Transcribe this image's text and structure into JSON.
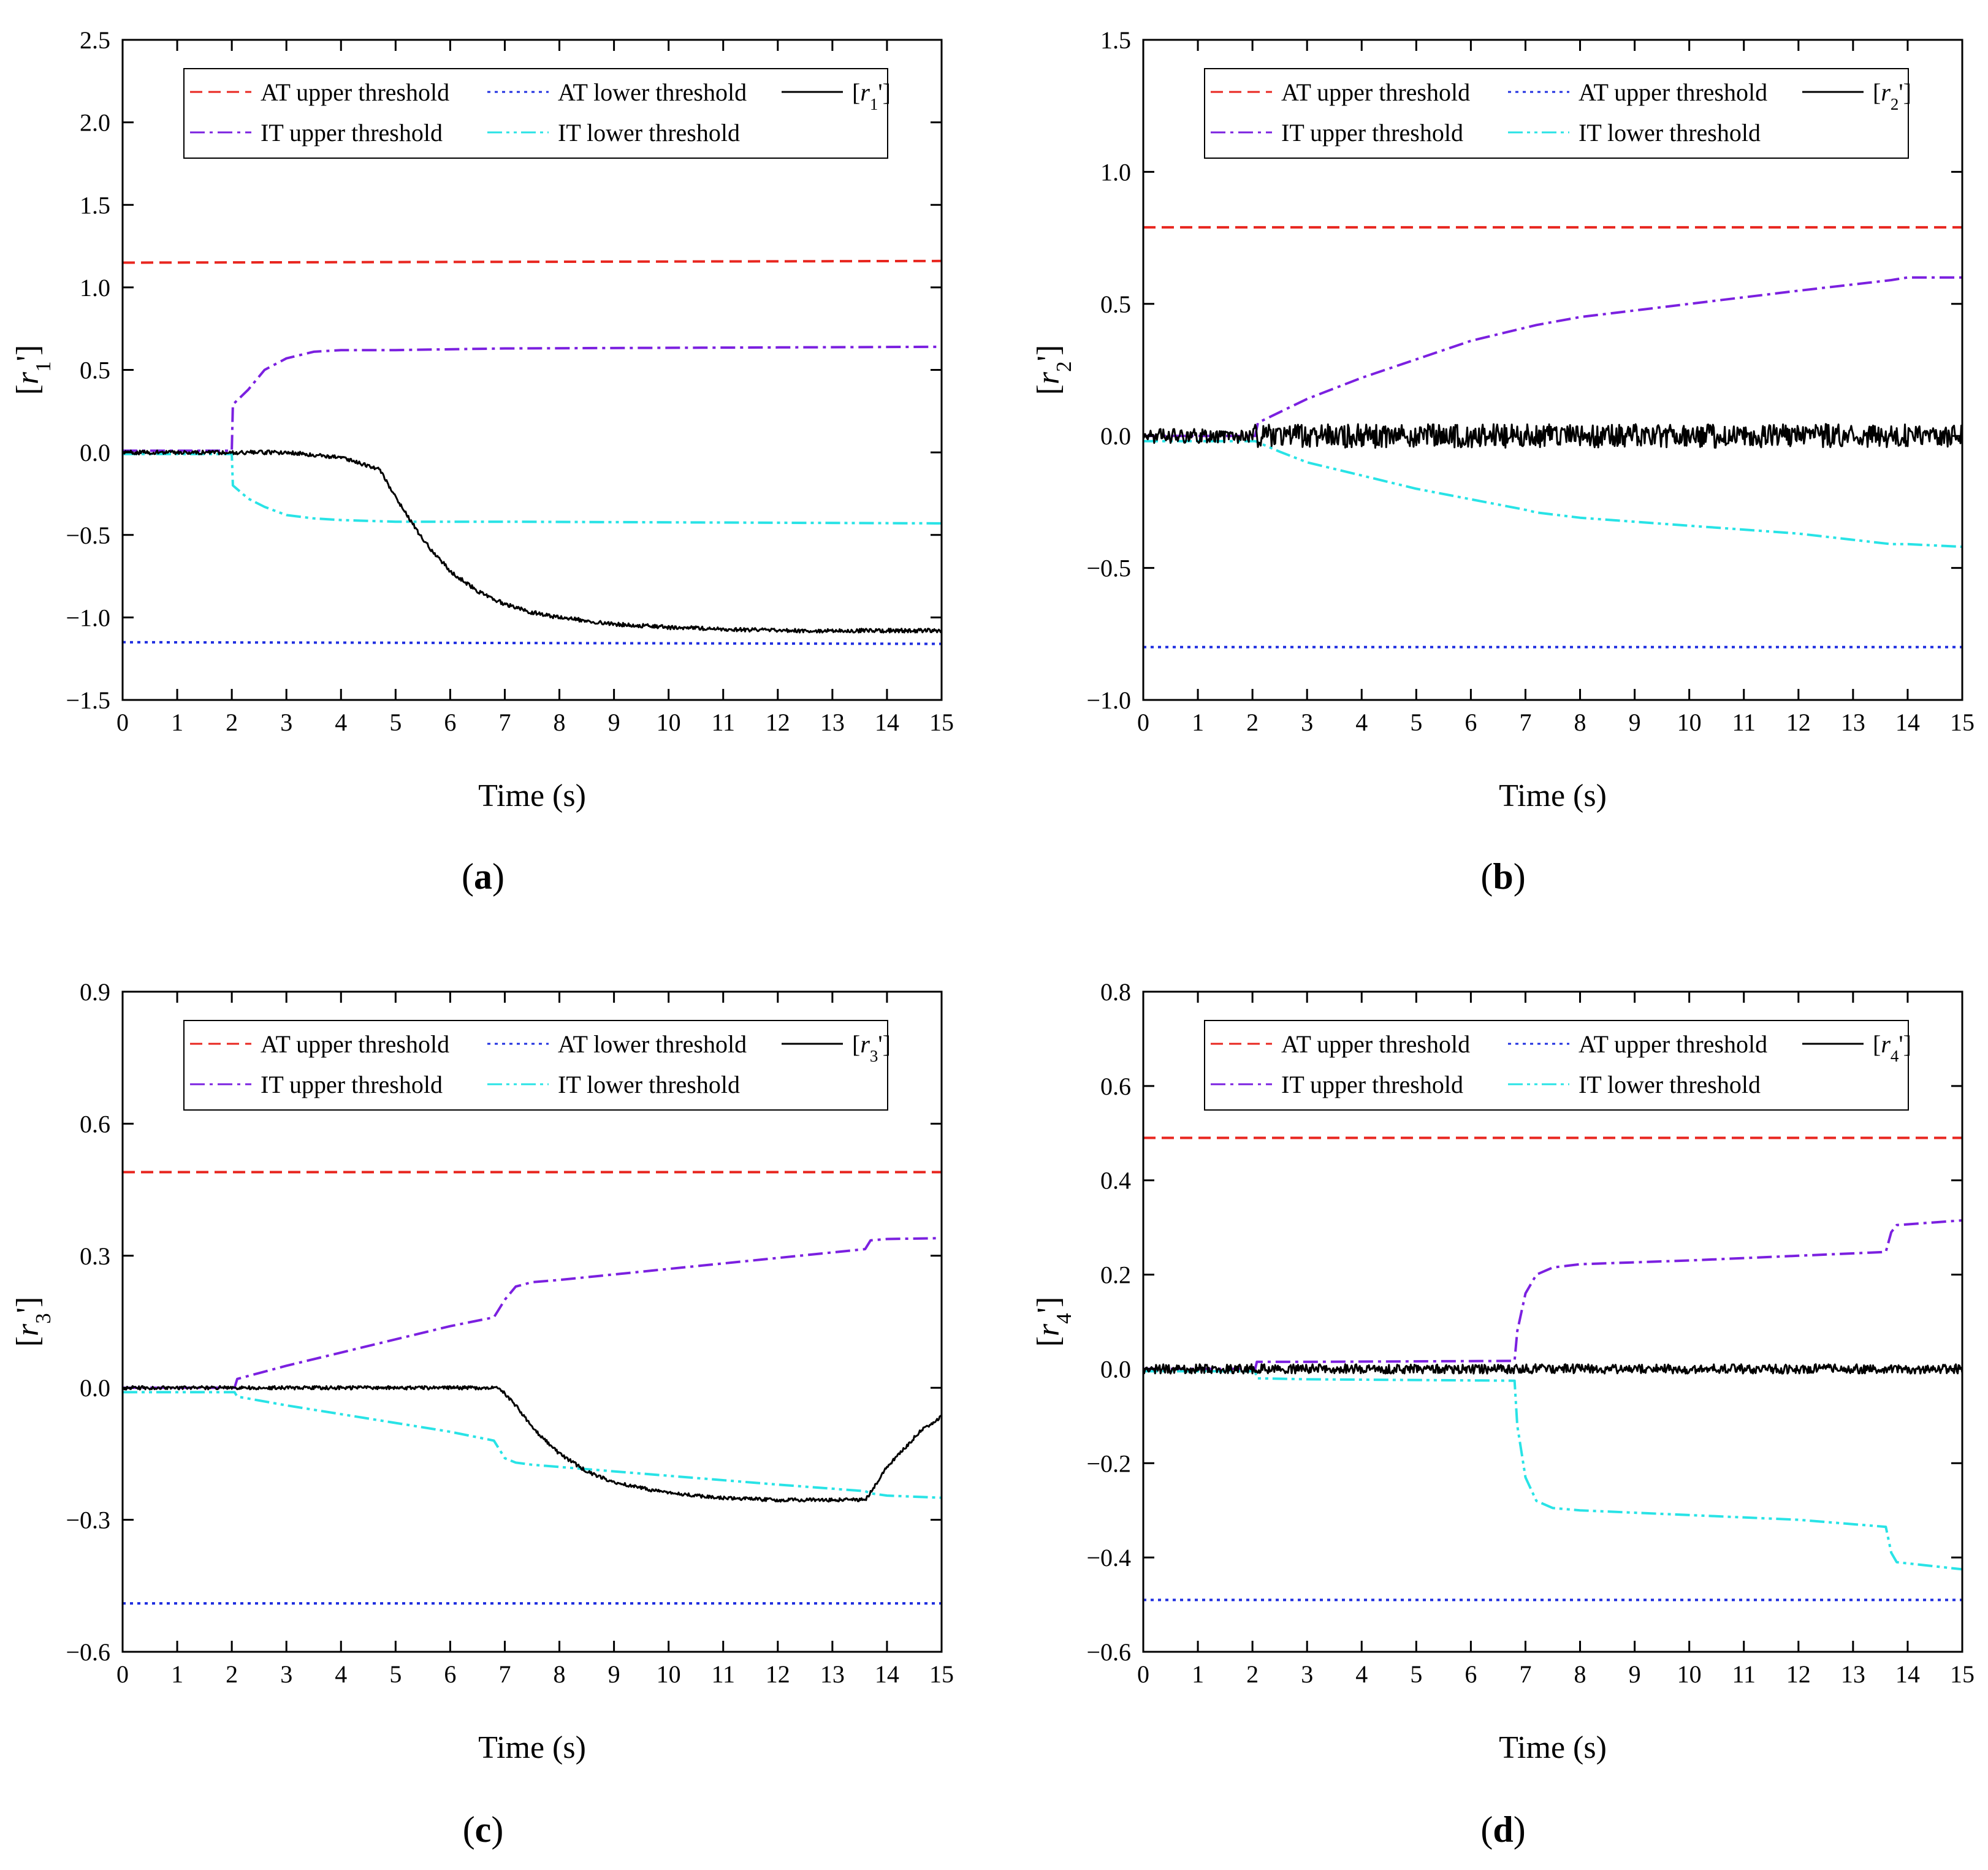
{
  "panel_labels": [
    "a",
    "b",
    "c",
    "d"
  ],
  "chart_data": [
    {
      "type": "line",
      "xlabel": "Time (s)",
      "ylabel": {
        "main": "r",
        "sub": "1",
        "prime": "'"
      },
      "xlim": [
        0,
        15
      ],
      "ylim": [
        -1.5,
        2.5
      ],
      "xticks": [
        0,
        1,
        2,
        3,
        4,
        5,
        6,
        7,
        8,
        9,
        10,
        11,
        12,
        13,
        14,
        15
      ],
      "yticks": [
        -1.5,
        -1.0,
        -0.5,
        0.0,
        0.5,
        1.0,
        1.5,
        2.0,
        2.5
      ],
      "yticklabels": [
        "−1.5",
        "−1.0",
        "−0.5",
        "0.0",
        "0.5",
        "1.0",
        "1.5",
        "2.0",
        "2.5"
      ],
      "legend": {
        "position": "top",
        "rows": [
          [
            0,
            1,
            4
          ],
          [
            2,
            3
          ]
        ]
      },
      "series": [
        {
          "name": "AT upper threshold",
          "color": "#e8261f",
          "dash": "dashed",
          "x": [
            0,
            15
          ],
          "y": [
            1.15,
            1.16
          ]
        },
        {
          "name": "AT lower threshold",
          "color": "#1f2fe0",
          "dash": "dotted",
          "x": [
            0,
            15
          ],
          "y": [
            -1.15,
            -1.16
          ]
        },
        {
          "name": "IT upper threshold",
          "color": "#7b20e0",
          "dash": "dashdot",
          "x": [
            0,
            2.0,
            2.02,
            2.3,
            2.6,
            3.0,
            3.5,
            4.0,
            5.0,
            7.0,
            15
          ],
          "y": [
            0.01,
            0.01,
            0.29,
            0.38,
            0.5,
            0.57,
            0.61,
            0.62,
            0.62,
            0.63,
            0.64
          ]
        },
        {
          "name": "IT lower threshold",
          "color": "#28e3e6",
          "dash": "dashdotdot",
          "x": [
            0,
            2.0,
            2.02,
            2.3,
            2.6,
            3.0,
            3.5,
            4.0,
            5.0,
            7.0,
            15
          ],
          "y": [
            -0.01,
            -0.01,
            -0.2,
            -0.28,
            -0.33,
            -0.38,
            -0.4,
            -0.41,
            -0.42,
            -0.42,
            -0.43
          ]
        },
        {
          "name": "r1'",
          "label": {
            "main": "r",
            "sub": "1",
            "prime": "'"
          },
          "color": "#000000",
          "dash": "solid",
          "noise": 0.012,
          "x": [
            0,
            2.0,
            3.0,
            4.0,
            4.7,
            5.0,
            5.5,
            6.0,
            6.5,
            7.0,
            7.5,
            8.0,
            9.0,
            10.0,
            11.0,
            12.0,
            13.0,
            14.0,
            15
          ],
          "y": [
            0.0,
            0.0,
            0.0,
            -0.03,
            -0.1,
            -0.27,
            -0.53,
            -0.72,
            -0.84,
            -0.92,
            -0.97,
            -1.0,
            -1.04,
            -1.06,
            -1.07,
            -1.08,
            -1.08,
            -1.08,
            -1.08
          ]
        }
      ]
    },
    {
      "type": "line",
      "xlabel": "Time (s)",
      "ylabel": {
        "main": "r",
        "sub": "2",
        "prime": "'"
      },
      "xlim": [
        0,
        15
      ],
      "ylim": [
        -1.0,
        1.5
      ],
      "xticks": [
        0,
        1,
        2,
        3,
        4,
        5,
        6,
        7,
        8,
        9,
        10,
        11,
        12,
        13,
        14,
        15
      ],
      "yticks": [
        -1.0,
        -0.5,
        0.0,
        0.5,
        1.0,
        1.5
      ],
      "yticklabels": [
        "−1.0",
        "−0.5",
        "0.0",
        "0.5",
        "1.0",
        "1.5"
      ],
      "legend": {
        "position": "top",
        "rows": [
          [
            0,
            1,
            4
          ],
          [
            2,
            3
          ]
        ]
      },
      "series": [
        {
          "name": "AT upper threshold",
          "color": "#e8261f",
          "dash": "dashed",
          "x": [
            0,
            15
          ],
          "y": [
            0.79,
            0.79
          ]
        },
        {
          "name": "AT upper threshold",
          "color": "#1f2fe0",
          "dash": "dotted",
          "x": [
            0,
            15
          ],
          "y": [
            -0.8,
            -0.8
          ]
        },
        {
          "name": "IT upper threshold",
          "color": "#7b20e0",
          "dash": "dashdot",
          "x": [
            0,
            2.05,
            2.1,
            2.5,
            3.0,
            4.0,
            5.0,
            6.0,
            7.0,
            7.2,
            8.0,
            10.0,
            12.0,
            13.7,
            14.0,
            15
          ],
          "y": [
            0.0,
            0.0,
            0.05,
            0.09,
            0.14,
            0.22,
            0.29,
            0.36,
            0.41,
            0.42,
            0.45,
            0.5,
            0.55,
            0.59,
            0.6,
            0.6
          ]
        },
        {
          "name": "IT lower threshold",
          "color": "#28e3e6",
          "dash": "dashdotdot",
          "x": [
            0,
            2.05,
            2.5,
            3.0,
            4.0,
            5.0,
            6.0,
            7.0,
            7.2,
            8.0,
            10.0,
            12.0,
            13.7,
            14.0,
            15
          ],
          "y": [
            -0.02,
            -0.02,
            -0.06,
            -0.1,
            -0.15,
            -0.2,
            -0.24,
            -0.28,
            -0.29,
            -0.31,
            -0.34,
            -0.37,
            -0.41,
            -0.41,
            -0.42
          ]
        },
        {
          "name": "r2'",
          "label": {
            "main": "r",
            "sub": "2",
            "prime": "'"
          },
          "color": "#000000",
          "dash": "solid",
          "noise": 0.045,
          "x": [
            0,
            15
          ],
          "y": [
            0.0,
            0.0
          ]
        }
      ]
    },
    {
      "type": "line",
      "xlabel": "Time (s)",
      "ylabel": {
        "main": "r",
        "sub": "3",
        "prime": "'"
      },
      "xlim": [
        0,
        15
      ],
      "ylim": [
        -0.6,
        0.9
      ],
      "xticks": [
        0,
        1,
        2,
        3,
        4,
        5,
        6,
        7,
        8,
        9,
        10,
        11,
        12,
        13,
        14,
        15
      ],
      "yticks": [
        -0.6,
        -0.3,
        0.0,
        0.3,
        0.6,
        0.9
      ],
      "yticklabels": [
        "−0.6",
        "−0.3",
        "0.0",
        "0.3",
        "0.6",
        "0.9"
      ],
      "legend": {
        "position": "top",
        "rows": [
          [
            0,
            1,
            4
          ],
          [
            2,
            3
          ]
        ]
      },
      "series": [
        {
          "name": "AT upper threshold",
          "color": "#e8261f",
          "dash": "dashed",
          "x": [
            0,
            15
          ],
          "y": [
            0.49,
            0.49
          ]
        },
        {
          "name": "AT lower threshold",
          "color": "#1f2fe0",
          "dash": "dotted",
          "x": [
            0,
            15
          ],
          "y": [
            -0.49,
            -0.49
          ]
        },
        {
          "name": "IT upper threshold",
          "color": "#7b20e0",
          "dash": "dashdot",
          "x": [
            0,
            2.05,
            2.1,
            3.0,
            4.0,
            5.0,
            6.0,
            6.8,
            6.9,
            7.0,
            7.2,
            7.5,
            8.0,
            10.0,
            12.0,
            13.6,
            13.7,
            14.0,
            15
          ],
          "y": [
            0.0,
            0.0,
            0.02,
            0.05,
            0.08,
            0.11,
            0.14,
            0.16,
            0.18,
            0.2,
            0.23,
            0.24,
            0.245,
            0.27,
            0.295,
            0.315,
            0.335,
            0.338,
            0.34
          ]
        },
        {
          "name": "IT lower threshold",
          "color": "#28e3e6",
          "dash": "dashdotdot",
          "x": [
            0,
            2.05,
            2.1,
            3.0,
            4.0,
            5.0,
            6.0,
            6.8,
            6.9,
            7.0,
            7.2,
            7.5,
            8.0,
            10.0,
            12.0,
            13.6,
            13.7,
            14.0,
            15
          ],
          "y": [
            -0.01,
            -0.01,
            -0.02,
            -0.04,
            -0.06,
            -0.08,
            -0.1,
            -0.12,
            -0.14,
            -0.16,
            -0.17,
            -0.175,
            -0.18,
            -0.2,
            -0.22,
            -0.235,
            -0.24,
            -0.245,
            -0.25
          ]
        },
        {
          "name": "r3'",
          "label": {
            "main": "r",
            "sub": "3",
            "prime": "'"
          },
          "color": "#000000",
          "dash": "solid",
          "noise": 0.004,
          "x": [
            0,
            2.0,
            4.0,
            6.0,
            6.9,
            7.2,
            7.5,
            8.0,
            8.5,
            9.0,
            10.0,
            11.0,
            12.0,
            13.0,
            13.6,
            13.8,
            14.0,
            14.3,
            14.6,
            15
          ],
          "y": [
            0.0,
            0.0,
            0.0,
            0.0,
            0.0,
            -0.04,
            -0.09,
            -0.15,
            -0.19,
            -0.215,
            -0.24,
            -0.25,
            -0.255,
            -0.255,
            -0.255,
            -0.22,
            -0.18,
            -0.14,
            -0.1,
            -0.065
          ]
        }
      ]
    },
    {
      "type": "line",
      "xlabel": "Time (s)",
      "ylabel": {
        "main": "r",
        "sub": "4",
        "prime": "'"
      },
      "xlim": [
        0,
        15
      ],
      "ylim": [
        -0.6,
        0.8
      ],
      "xticks": [
        0,
        1,
        2,
        3,
        4,
        5,
        6,
        7,
        8,
        9,
        10,
        11,
        12,
        13,
        14,
        15
      ],
      "yticks": [
        -0.6,
        -0.4,
        -0.2,
        0.0,
        0.2,
        0.4,
        0.6,
        0.8
      ],
      "yticklabels": [
        "−0.6",
        "−0.4",
        "−0.2",
        "0.0",
        "0.2",
        "0.4",
        "0.6",
        "0.8"
      ],
      "legend": {
        "position": "top",
        "rows": [
          [
            0,
            1,
            4
          ],
          [
            2,
            3
          ]
        ]
      },
      "series": [
        {
          "name": "AT upper threshold",
          "color": "#e8261f",
          "dash": "dashed",
          "x": [
            0,
            15
          ],
          "y": [
            0.49,
            0.49
          ]
        },
        {
          "name": "AT upper threshold",
          "color": "#1f2fe0",
          "dash": "dotted",
          "x": [
            0,
            15
          ],
          "y": [
            -0.49,
            -0.49
          ]
        },
        {
          "name": "IT upper threshold",
          "color": "#7b20e0",
          "dash": "dashdot",
          "x": [
            0,
            2.05,
            2.08,
            3.0,
            6.8,
            6.85,
            7.0,
            7.2,
            7.5,
            8.0,
            10.0,
            12.0,
            13.6,
            13.7,
            13.8,
            15
          ],
          "y": [
            0.0,
            0.0,
            0.015,
            0.015,
            0.017,
            0.08,
            0.16,
            0.2,
            0.215,
            0.222,
            0.23,
            0.24,
            0.248,
            0.29,
            0.305,
            0.315
          ]
        },
        {
          "name": "IT lower threshold",
          "color": "#28e3e6",
          "dash": "dashdotdot",
          "x": [
            0,
            2.05,
            2.08,
            3.0,
            6.8,
            6.85,
            7.0,
            7.2,
            7.5,
            8.0,
            10.0,
            12.0,
            13.6,
            13.7,
            13.8,
            15
          ],
          "y": [
            -0.005,
            -0.005,
            -0.02,
            -0.022,
            -0.025,
            -0.12,
            -0.23,
            -0.28,
            -0.295,
            -0.3,
            -0.31,
            -0.32,
            -0.335,
            -0.39,
            -0.41,
            -0.425
          ]
        },
        {
          "name": "r4'",
          "label": {
            "main": "r",
            "sub": "4",
            "prime": "'"
          },
          "color": "#000000",
          "dash": "solid",
          "noise": 0.01,
          "x": [
            0,
            15
          ],
          "y": [
            0.0,
            0.0
          ]
        }
      ]
    }
  ]
}
